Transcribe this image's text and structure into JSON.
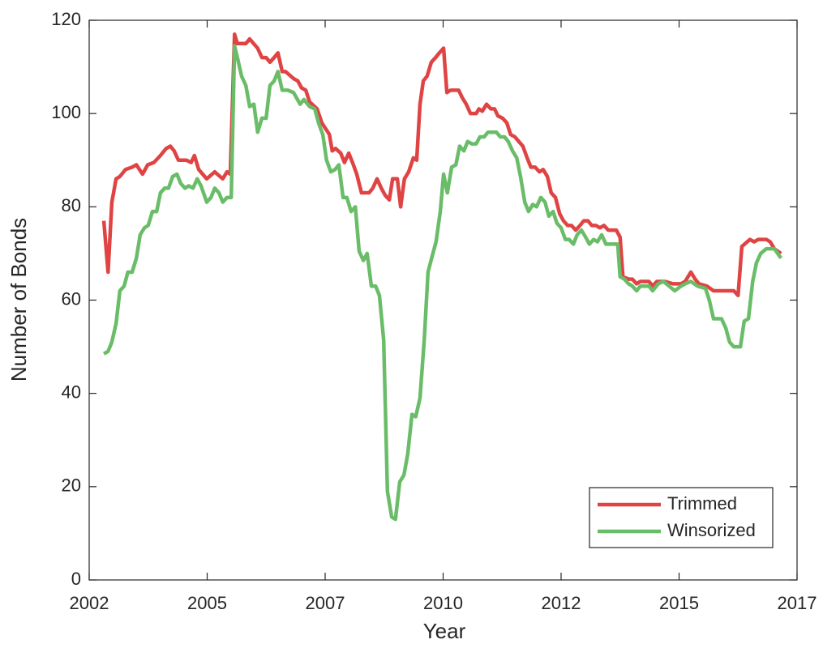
{
  "chart_data": {
    "type": "line",
    "x_label": "Year",
    "y_label": "Number of Bonds",
    "xlim": [
      2002.5,
      2017.5
    ],
    "ylim": [
      0,
      120
    ],
    "xticks": [
      {
        "value": 2002.5,
        "label": "2002"
      },
      {
        "value": 2005,
        "label": "2005"
      },
      {
        "value": 2007.5,
        "label": "2007"
      },
      {
        "value": 2010,
        "label": "2010"
      },
      {
        "value": 2012.5,
        "label": "2012"
      },
      {
        "value": 2015,
        "label": "2015"
      },
      {
        "value": 2017.5,
        "label": "2017"
      }
    ],
    "yticks": [
      0,
      20,
      40,
      60,
      80,
      100,
      120
    ],
    "grid": false,
    "legend": "lower-right",
    "series": [
      {
        "name": "Trimmed",
        "color": "#e04343",
        "x": [
          2002.81,
          2002.9,
          2002.98,
          2003.07,
          2003.15,
          2003.27,
          2003.41,
          2003.5,
          2003.63,
          2003.74,
          2003.87,
          2004.01,
          2004.13,
          2004.22,
          2004.3,
          2004.39,
          2004.56,
          2004.66,
          2004.73,
          2004.82,
          2004.99,
          2005.16,
          2005.33,
          2005.42,
          2005.49,
          2005.58,
          2005.64,
          2005.82,
          2005.9,
          2006.07,
          2006.16,
          2006.25,
          2006.33,
          2006.42,
          2006.5,
          2006.59,
          2006.66,
          2006.83,
          2006.92,
          2007.0,
          2007.09,
          2007.17,
          2007.33,
          2007.43,
          2007.59,
          2007.65,
          2007.72,
          2007.83,
          2007.91,
          2008.0,
          2008.08,
          2008.17,
          2008.27,
          2008.43,
          2008.51,
          2008.6,
          2008.69,
          2008.77,
          2008.86,
          2008.93,
          2009.03,
          2009.1,
          2009.18,
          2009.27,
          2009.37,
          2009.44,
          2009.51,
          2009.58,
          2009.66,
          2009.75,
          2009.84,
          2009.92,
          2010.01,
          2010.08,
          2010.16,
          2010.33,
          2010.4,
          2010.49,
          2010.58,
          2010.7,
          2010.76,
          2010.83,
          2010.92,
          2011.01,
          2011.09,
          2011.16,
          2011.26,
          2011.35,
          2011.43,
          2011.52,
          2011.69,
          2011.78,
          2011.86,
          2011.95,
          2012.04,
          2012.12,
          2012.21,
          2012.29,
          2012.38,
          2012.47,
          2012.55,
          2012.64,
          2012.72,
          2012.81,
          2012.9,
          2012.98,
          2013.07,
          2013.15,
          2013.24,
          2013.32,
          2013.41,
          2013.5,
          2013.58,
          2013.67,
          2013.75,
          2013.81,
          2013.93,
          2014.01,
          2014.1,
          2014.18,
          2014.36,
          2014.44,
          2014.53,
          2014.7,
          2014.87,
          2015.04,
          2015.13,
          2015.25,
          2015.34,
          2015.42,
          2015.59,
          2015.73,
          2015.9,
          2016.16,
          2016.25,
          2016.33,
          2016.5,
          2016.59,
          2016.68,
          2016.85,
          2016.93,
          2017.02,
          2017.16
        ],
        "values": [
          77,
          66,
          81,
          86,
          86.5,
          88,
          88.5,
          89,
          87,
          89,
          89.5,
          91,
          92.5,
          93,
          92,
          90,
          90,
          89.5,
          91,
          88,
          86,
          87.5,
          86,
          87.5,
          87,
          117,
          115,
          115,
          116,
          114,
          112,
          112,
          111,
          112,
          113,
          109,
          109,
          107.5,
          107,
          105.5,
          105,
          102.5,
          101,
          98,
          95.5,
          92,
          92.5,
          91.5,
          89.5,
          91.5,
          89.5,
          87,
          83,
          83,
          84,
          86,
          84,
          82.5,
          81.5,
          86,
          86,
          80,
          86,
          87.5,
          90.5,
          90,
          102,
          107,
          108,
          111,
          112,
          113,
          114,
          104.5,
          105,
          105,
          103.5,
          102,
          100,
          100,
          101,
          100.5,
          102,
          101,
          101,
          99.5,
          99,
          98,
          95.5,
          95,
          93,
          90.5,
          88.5,
          88.5,
          87.5,
          88,
          86.5,
          83,
          82,
          78.5,
          77,
          76,
          76,
          75,
          76,
          77,
          77,
          76,
          76,
          75.5,
          76,
          75,
          75,
          75,
          73.5,
          65,
          64.5,
          64.5,
          63.5,
          64,
          64,
          63,
          64,
          64,
          63.5,
          63.5,
          64,
          66,
          64.5,
          63.5,
          63,
          62,
          62,
          62,
          61,
          71.5,
          73,
          72.5,
          73,
          73,
          72.5,
          71,
          70
        ]
      },
      {
        "name": "Winsorized",
        "color": "#6abd68",
        "x": [
          2002.81,
          2002.9,
          2002.98,
          2003.07,
          2003.15,
          2003.24,
          2003.32,
          2003.41,
          2003.5,
          2003.58,
          2003.67,
          2003.75,
          2003.84,
          2003.93,
          2004.01,
          2004.1,
          2004.18,
          2004.27,
          2004.36,
          2004.44,
          2004.53,
          2004.61,
          2004.7,
          2004.79,
          2004.87,
          2004.99,
          2005.08,
          2005.16,
          2005.25,
          2005.33,
          2005.42,
          2005.51,
          2005.58,
          2005.64,
          2005.73,
          2005.82,
          2005.9,
          2005.99,
          2006.07,
          2006.16,
          2006.25,
          2006.33,
          2006.42,
          2006.5,
          2006.59,
          2006.71,
          2006.83,
          2006.97,
          2007.05,
          2007.17,
          2007.28,
          2007.36,
          2007.45,
          2007.53,
          2007.62,
          2007.71,
          2007.79,
          2007.88,
          2007.96,
          2008.05,
          2008.14,
          2008.22,
          2008.31,
          2008.39,
          2008.48,
          2008.57,
          2008.65,
          2008.74,
          2008.82,
          2008.91,
          2008.99,
          2009.08,
          2009.17,
          2009.25,
          2009.34,
          2009.42,
          2009.51,
          2009.6,
          2009.68,
          2009.77,
          2009.85,
          2009.94,
          2010.01,
          2010.09,
          2010.18,
          2010.27,
          2010.35,
          2010.44,
          2010.52,
          2010.61,
          2010.7,
          2010.78,
          2010.87,
          2010.95,
          2011.13,
          2011.21,
          2011.3,
          2011.38,
          2011.47,
          2011.56,
          2011.64,
          2011.73,
          2011.81,
          2011.9,
          2011.98,
          2012.07,
          2012.16,
          2012.24,
          2012.33,
          2012.41,
          2012.5,
          2012.59,
          2012.67,
          2012.76,
          2012.84,
          2012.93,
          2013.02,
          2013.1,
          2013.19,
          2013.27,
          2013.36,
          2013.45,
          2013.7,
          2013.75,
          2013.84,
          2013.93,
          2014.01,
          2014.1,
          2014.18,
          2014.36,
          2014.44,
          2014.56,
          2014.67,
          2014.79,
          2014.91,
          2015.04,
          2015.13,
          2015.25,
          2015.39,
          2015.56,
          2015.64,
          2015.73,
          2015.9,
          2015.99,
          2016.07,
          2016.16,
          2016.3,
          2016.38,
          2016.47,
          2016.56,
          2016.64,
          2016.73,
          2016.85,
          2017.02,
          2017.16
        ],
        "values": [
          48.5,
          49,
          51,
          55,
          62,
          63,
          66,
          66,
          69,
          74,
          75.5,
          76,
          79,
          79,
          83,
          84,
          84,
          86.5,
          87,
          85,
          84,
          84.5,
          84,
          86,
          84.5,
          81,
          82,
          84,
          83,
          81,
          82,
          82,
          114.5,
          112,
          108,
          106,
          101.5,
          102,
          96,
          99,
          99,
          106,
          107,
          109,
          105,
          105,
          104.5,
          102,
          103,
          101.5,
          101,
          98,
          95.5,
          90,
          87.5,
          88,
          89,
          82,
          82,
          79,
          80,
          70.5,
          68.5,
          70,
          63,
          63,
          61,
          51.5,
          19,
          13.5,
          13,
          21,
          22.5,
          27,
          35.5,
          35,
          39,
          51.5,
          66,
          69.5,
          72.5,
          79,
          87,
          83,
          88.5,
          89,
          93,
          92,
          94,
          93.5,
          93.5,
          95,
          95,
          96,
          96,
          95,
          95,
          94,
          92,
          90.5,
          86.5,
          81,
          79,
          80.5,
          80,
          82,
          81,
          78,
          79,
          76.5,
          75.5,
          73,
          73,
          72,
          74,
          75,
          73.5,
          72,
          73,
          72.5,
          74,
          72,
          72,
          65,
          64.5,
          63.5,
          63,
          62,
          63,
          63,
          62,
          63.5,
          64,
          63,
          62,
          63,
          63.5,
          64,
          63,
          62.5,
          60,
          56,
          56,
          54,
          51,
          50,
          50,
          55.5,
          56,
          64,
          68,
          70,
          71,
          71,
          69
        ]
      }
    ]
  }
}
